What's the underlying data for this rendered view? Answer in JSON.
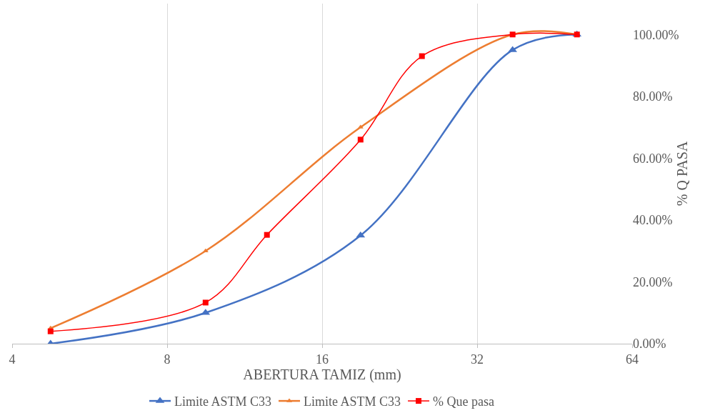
{
  "chart_data": {
    "type": "line",
    "xlabel": "ABERTURA TAMIZ (mm)",
    "y2label": "% Q PASA",
    "log": "x",
    "grid": "x",
    "legend": "bottom",
    "line_style": "solid",
    "xlim": [
      4,
      64
    ],
    "xticks": [
      4,
      8,
      16,
      32,
      64
    ],
    "y2lim": [
      0,
      110
    ],
    "y2ticks": [
      {
        "value": 0,
        "label": "0.00%"
      },
      {
        "value": 20,
        "label": "20.00%"
      },
      {
        "value": 40,
        "label": "40.00%"
      },
      {
        "value": 60,
        "label": "60.00%"
      },
      {
        "value": 80,
        "label": "80.00%"
      },
      {
        "value": 100,
        "label": "100.00%"
      }
    ],
    "series": [
      {
        "name": "Limite ASTM C33",
        "color": "#4472c4",
        "axis": "y2",
        "marker": "triangle",
        "x": [
          4.75,
          9.5,
          19,
          37.5,
          50
        ],
        "values": [
          0,
          10,
          35,
          95,
          100
        ]
      },
      {
        "name": "Limite ASTM C33",
        "color": "#ed7d31",
        "axis": "y2",
        "marker": "triangle",
        "x": [
          4.75,
          9.5,
          19,
          37.5,
          50
        ],
        "values": [
          5,
          30,
          70,
          100,
          100
        ]
      },
      {
        "name": "% Que pasa",
        "color": "#ff0000",
        "axis": "y2",
        "marker": "square",
        "x": [
          4.75,
          9.5,
          12.5,
          19,
          25,
          37.5,
          50
        ],
        "values": [
          4,
          13.3,
          35.2,
          66,
          93,
          100,
          100
        ]
      }
    ]
  }
}
